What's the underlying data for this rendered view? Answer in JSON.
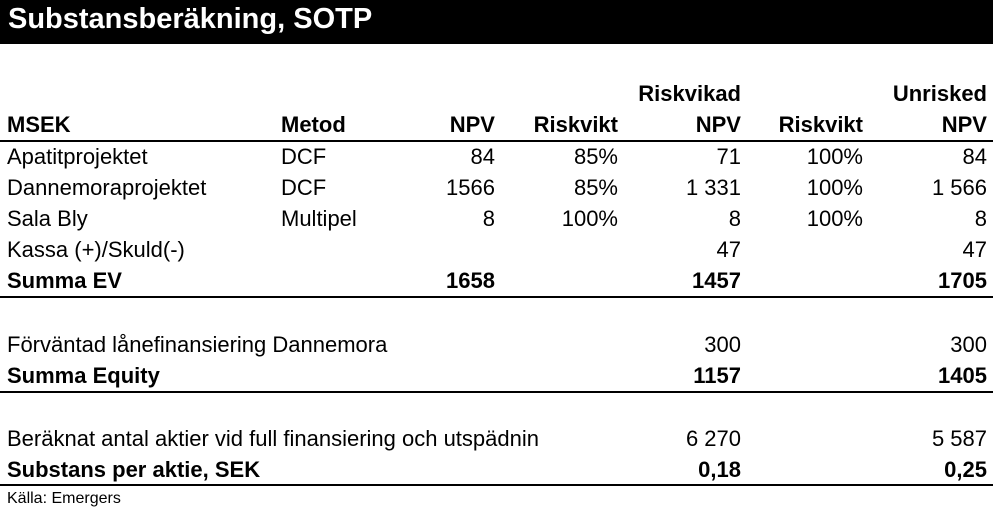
{
  "title": "Substansberäkning, SOTP",
  "headers": {
    "msek": "MSEK",
    "metod": "Metod",
    "npv": "NPV",
    "riskvikt1": "Riskvikt",
    "riskvikad_top": "Riskvikad",
    "riskvikad_bottom": "NPV",
    "riskvikt2": "Riskvikt",
    "unrisked_top": "Unrisked",
    "unrisked_bottom": "NPV"
  },
  "rows": [
    {
      "label": "Apatitprojektet",
      "metod": "DCF",
      "npv": "84",
      "riskvikt1": "85%",
      "riskvikad": "71",
      "riskvikt2": "100%",
      "unrisked": "84"
    },
    {
      "label": "Dannemoraprojektet",
      "metod": "DCF",
      "npv": "1566",
      "riskvikt1": "85%",
      "riskvikad": "1 331",
      "riskvikt2": "100%",
      "unrisked": "1 566"
    },
    {
      "label": "Sala Bly",
      "metod": "Multipel",
      "npv": "8",
      "riskvikt1": "100%",
      "riskvikad": "8",
      "riskvikt2": "100%",
      "unrisked": "8"
    },
    {
      "label": "Kassa (+)/Skuld(-)",
      "riskvikad": "47",
      "unrisked": "47"
    }
  ],
  "summa_ev": {
    "label": "Summa EV",
    "npv": "1658",
    "riskvikad": "1457",
    "unrisked": "1705"
  },
  "lanefinansiering": {
    "label": "Förväntad lånefinansiering Dannemora",
    "riskvikad": "300",
    "unrisked": "300"
  },
  "summa_equity": {
    "label": "Summa Equity",
    "riskvikad": "1157",
    "unrisked": "1405"
  },
  "antal_aktier": {
    "label": "Beräknat antal aktier vid full finansiering och utspädnin",
    "riskvikad": "6 270",
    "unrisked": "5 587"
  },
  "substans": {
    "label": "Substans per aktie, SEK",
    "riskvikad": "0,18",
    "unrisked": "0,25"
  },
  "source": "Källa: Emergers"
}
